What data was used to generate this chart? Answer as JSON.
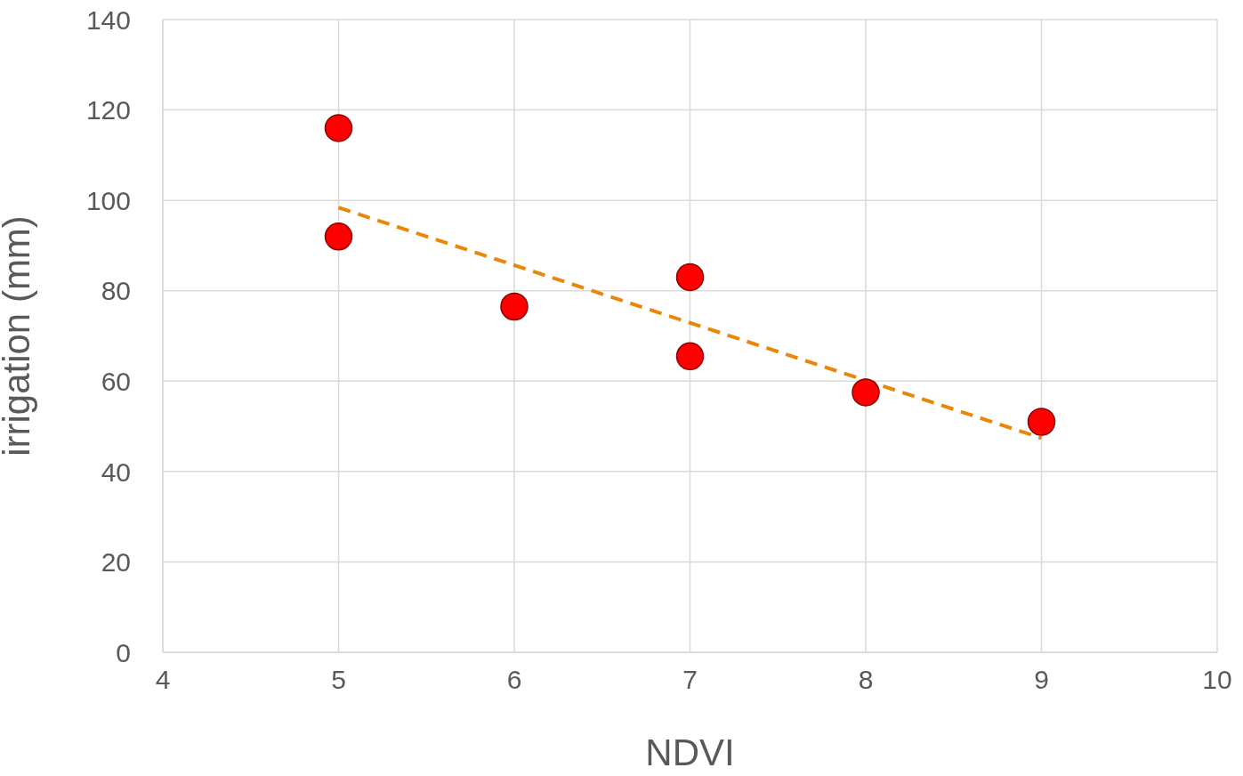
{
  "chart_data": {
    "type": "scatter",
    "xlabel": "NDVI",
    "ylabel": "irrigation (mm)",
    "xlim": [
      4,
      10
    ],
    "xticks": [
      4,
      5,
      6,
      7,
      8,
      9,
      10
    ],
    "ylim": [
      0,
      140
    ],
    "yticks": [
      0,
      20,
      40,
      60,
      80,
      100,
      120,
      140
    ],
    "grid": true,
    "marker": "circle",
    "series": [
      {
        "color": "#ff0000",
        "x": [
          5,
          5,
          6,
          7,
          7,
          8,
          9
        ],
        "values": [
          116,
          92,
          76.5,
          83,
          65.5,
          57.5,
          51
        ]
      },
      {
        "type": "line",
        "color": "#e8870a",
        "line_style": "dashed",
        "marker": "none",
        "x": [
          5,
          9
        ],
        "values": [
          98.4,
          47.4
        ]
      }
    ]
  }
}
